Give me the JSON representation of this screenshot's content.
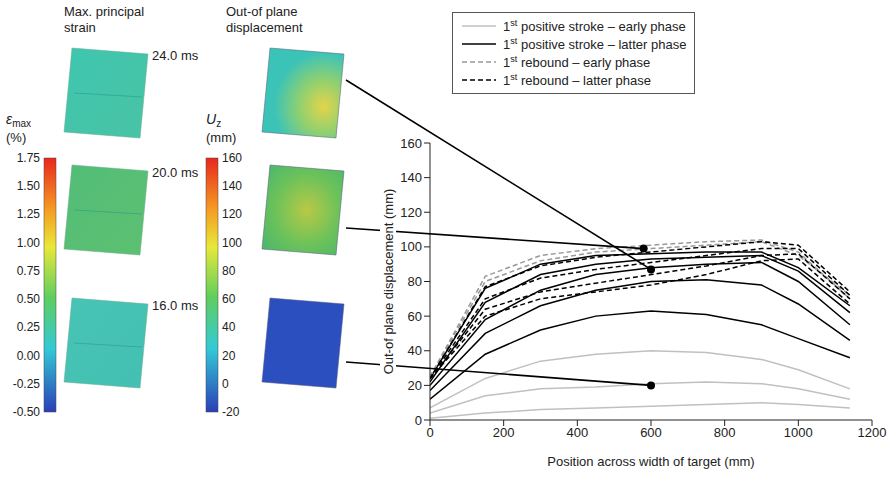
{
  "contour_panels": {
    "columns": [
      {
        "title": "Max. principal strain",
        "colorbar": {
          "symbol": "ε",
          "subscript": "max",
          "unit": "(%)",
          "range": [
            -0.5,
            1.75
          ],
          "ticks": [
            1.75,
            {
              "value": 1.5,
              "label": "1.50"
            },
            1.25,
            {
              "value": 1.0,
              "label": "1.00"
            },
            0.75,
            {
              "value": 0.5,
              "label": "0.50"
            },
            0.25,
            {
              "value": 0,
              "label": "0.00"
            },
            -0.25,
            {
              "value": -0.5,
              "label": "-0.50"
            }
          ]
        }
      },
      {
        "title": "Out-of plane displacement",
        "colorbar": {
          "symbol": "U",
          "subscript": "z",
          "unit": "(mm)",
          "range": [
            -20,
            160
          ],
          "ticks": [
            160,
            140,
            120,
            100,
            80,
            60,
            40,
            20,
            0,
            -20
          ]
        }
      }
    ],
    "rows": [
      {
        "time": "24.0 ms",
        "marker": {
          "x": 600,
          "y": 87
        }
      },
      {
        "time": "20.0 ms",
        "marker": {
          "x": 580,
          "y": 99
        }
      },
      {
        "time": "16.0 ms",
        "marker": {
          "x": 600,
          "y": 20
        }
      }
    ]
  },
  "chart_data": {
    "type": "line",
    "x_label": "Position across width of target (mm)",
    "y_label": "Out-of plane displacement (mm)",
    "xlim": [
      0,
      1200
    ],
    "xticks": [
      0,
      200,
      400,
      600,
      800,
      1000,
      1200
    ],
    "ylim": [
      0,
      160
    ],
    "yticks": [
      0,
      20,
      40,
      60,
      80,
      100,
      120,
      140,
      160
    ],
    "grid": false,
    "legend": "top",
    "x": [
      0,
      150,
      300,
      450,
      600,
      750,
      900,
      1000,
      1140
    ],
    "series": [
      {
        "name": "1st positive stroke – early phase",
        "color": "#c0c0c0",
        "line_style": "solid",
        "curves": [
          [
            1,
            4,
            6,
            7,
            8,
            9,
            10,
            9,
            7
          ],
          [
            4,
            14,
            18,
            19,
            21,
            22,
            21,
            18,
            12
          ],
          [
            7,
            24,
            34,
            38,
            40,
            39,
            35,
            29,
            18
          ]
        ]
      },
      {
        "name": "1st positive stroke – latter phase",
        "color": "#000000",
        "line_style": "solid",
        "curves": [
          [
            12,
            38,
            52,
            60,
            63,
            61,
            55,
            47,
            36
          ],
          [
            17,
            50,
            66,
            75,
            80,
            81,
            78,
            67,
            46
          ],
          [
            20,
            58,
            75,
            84,
            88,
            90,
            91,
            80,
            55
          ],
          [
            22,
            68,
            84,
            90,
            93,
            94,
            95,
            86,
            62
          ],
          [
            24,
            76,
            90,
            95,
            96,
            97,
            97,
            88,
            66
          ]
        ]
      },
      {
        "name": "1st rebound – early phase",
        "color": "#999999",
        "line_style": "dashed",
        "curves": [
          [
            25,
            80,
            92,
            97,
            99,
            101,
            103,
            95,
            72
          ],
          [
            25,
            83,
            95,
            99,
            101,
            103,
            104,
            97,
            70
          ]
        ]
      },
      {
        "name": "1st rebound – latter phase",
        "color": "#000000",
        "line_style": "dashed",
        "curves": [
          [
            24,
            60,
            70,
            74,
            78,
            84,
            92,
            93,
            67
          ],
          [
            24,
            64,
            74,
            79,
            84,
            89,
            95,
            96,
            70
          ],
          [
            24,
            70,
            82,
            87,
            91,
            95,
            99,
            99,
            72
          ],
          [
            24,
            77,
            89,
            94,
            97,
            100,
            103,
            101,
            74
          ]
        ]
      }
    ]
  }
}
